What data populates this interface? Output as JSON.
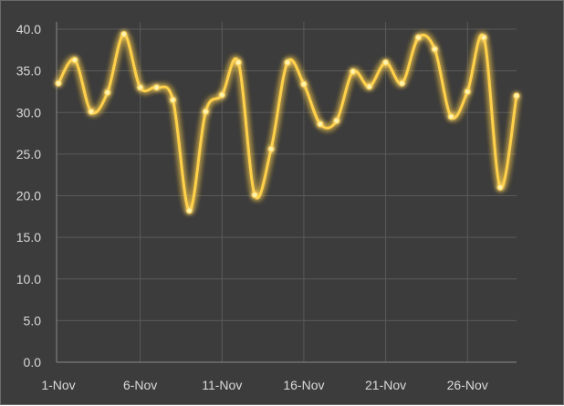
{
  "chart_data": {
    "type": "line",
    "title": "",
    "xlabel": "",
    "ylabel": "",
    "x": [
      "1-Nov",
      "2-Nov",
      "3-Nov",
      "4-Nov",
      "5-Nov",
      "6-Nov",
      "7-Nov",
      "8-Nov",
      "9-Nov",
      "10-Nov",
      "11-Nov",
      "12-Nov",
      "13-Nov",
      "14-Nov",
      "15-Nov",
      "16-Nov",
      "17-Nov",
      "18-Nov",
      "19-Nov",
      "20-Nov",
      "21-Nov",
      "22-Nov",
      "23-Nov",
      "24-Nov",
      "25-Nov",
      "26-Nov",
      "27-Nov",
      "28-Nov",
      "29-Nov"
    ],
    "x_tick_labels": [
      "1-Nov",
      "6-Nov",
      "11-Nov",
      "16-Nov",
      "21-Nov",
      "26-Nov"
    ],
    "ylim": [
      0,
      40
    ],
    "y_ticks": [
      "0.0",
      "5.0",
      "10.0",
      "15.0",
      "20.0",
      "25.0",
      "30.0",
      "35.0",
      "40.0"
    ],
    "grid": true,
    "smooth": true,
    "series": [
      {
        "name": "",
        "color": "#ffd04a",
        "values": [
          33.5,
          36.3,
          30.1,
          32.4,
          39.4,
          33.0,
          33.0,
          31.5,
          18.2,
          30.1,
          32.1,
          36.0,
          20.1,
          25.6,
          36.0,
          33.4,
          28.6,
          29.0,
          34.9,
          33.1,
          36.0,
          33.5,
          39.0,
          37.6,
          29.5,
          32.5,
          39.0,
          21.0,
          32.0
        ]
      }
    ],
    "colors": {
      "background": "#3c3c3c",
      "grid": "#5a5a5a",
      "axis": "#8a8a8a",
      "text": "#d9d9d9"
    }
  }
}
